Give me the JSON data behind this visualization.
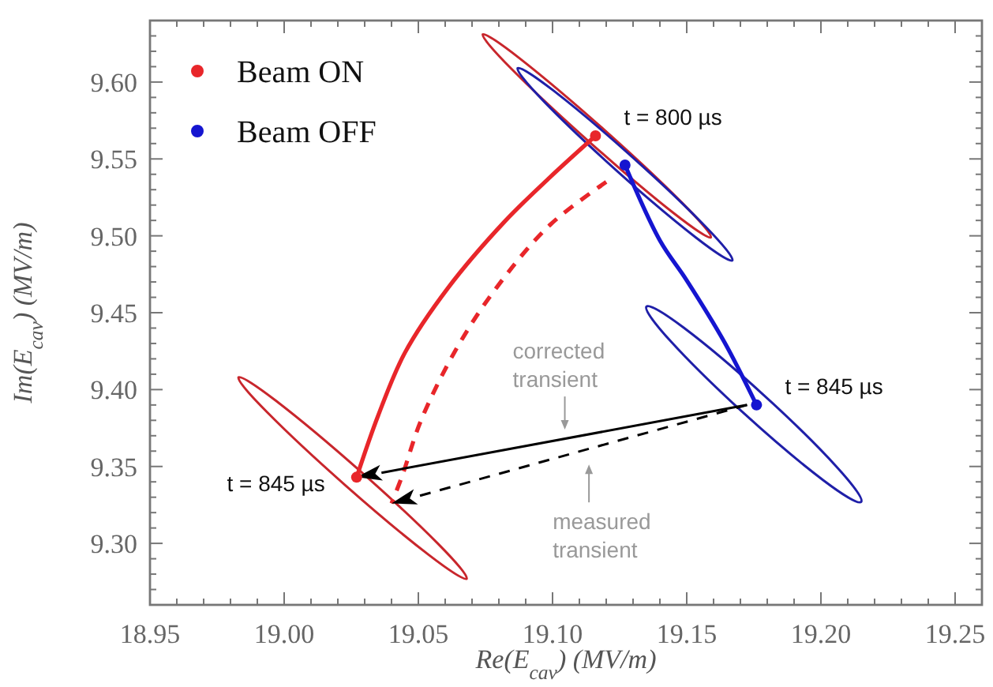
{
  "chart_data": {
    "type": "line",
    "xlabel": "Re(E$_{cav}$) (MV/m)",
    "ylabel": "Im(E$_{cav}$) (MV/m)",
    "xlim": [
      18.95,
      19.26
    ],
    "ylim": [
      9.26,
      9.64
    ],
    "xticks": [
      {
        "value": 18.95,
        "label": "18.95"
      },
      {
        "value": 18.96,
        "label": null
      },
      {
        "value": 18.97,
        "label": null
      },
      {
        "value": 18.98,
        "label": null
      },
      {
        "value": 18.99,
        "label": null
      },
      {
        "value": 19.0,
        "label": "19.00"
      },
      {
        "value": 19.01,
        "label": null
      },
      {
        "value": 19.02,
        "label": null
      },
      {
        "value": 19.03,
        "label": null
      },
      {
        "value": 19.04,
        "label": null
      },
      {
        "value": 19.05,
        "label": "19.05"
      },
      {
        "value": 19.06,
        "label": null
      },
      {
        "value": 19.07,
        "label": null
      },
      {
        "value": 19.08,
        "label": null
      },
      {
        "value": 19.09,
        "label": null
      },
      {
        "value": 19.1,
        "label": "19.10"
      },
      {
        "value": 19.11,
        "label": null
      },
      {
        "value": 19.12,
        "label": null
      },
      {
        "value": 19.13,
        "label": null
      },
      {
        "value": 19.14,
        "label": null
      },
      {
        "value": 19.15,
        "label": "19.15"
      },
      {
        "value": 19.16,
        "label": null
      },
      {
        "value": 19.17,
        "label": null
      },
      {
        "value": 19.18,
        "label": null
      },
      {
        "value": 19.19,
        "label": null
      },
      {
        "value": 19.2,
        "label": "19.20"
      },
      {
        "value": 19.21,
        "label": null
      },
      {
        "value": 19.22,
        "label": null
      },
      {
        "value": 19.23,
        "label": null
      },
      {
        "value": 19.24,
        "label": null
      },
      {
        "value": 19.25,
        "label": "19.25"
      }
    ],
    "yticks": [
      {
        "value": 9.27,
        "label": null
      },
      {
        "value": 9.28,
        "label": null
      },
      {
        "value": 9.29,
        "label": null
      },
      {
        "value": 9.3,
        "label": "9.30"
      },
      {
        "value": 9.31,
        "label": null
      },
      {
        "value": 9.32,
        "label": null
      },
      {
        "value": 9.33,
        "label": null
      },
      {
        "value": 9.34,
        "label": null
      },
      {
        "value": 9.35,
        "label": "9.35"
      },
      {
        "value": 9.36,
        "label": null
      },
      {
        "value": 9.37,
        "label": null
      },
      {
        "value": 9.38,
        "label": null
      },
      {
        "value": 9.39,
        "label": null
      },
      {
        "value": 9.4,
        "label": "9.40"
      },
      {
        "value": 9.41,
        "label": null
      },
      {
        "value": 9.42,
        "label": null
      },
      {
        "value": 9.43,
        "label": null
      },
      {
        "value": 9.44,
        "label": null
      },
      {
        "value": 9.45,
        "label": "9.45"
      },
      {
        "value": 9.46,
        "label": null
      },
      {
        "value": 9.47,
        "label": null
      },
      {
        "value": 9.48,
        "label": null
      },
      {
        "value": 9.49,
        "label": null
      },
      {
        "value": 9.5,
        "label": "9.50"
      },
      {
        "value": 9.51,
        "label": null
      },
      {
        "value": 9.52,
        "label": null
      },
      {
        "value": 9.53,
        "label": null
      },
      {
        "value": 9.54,
        "label": null
      },
      {
        "value": 9.55,
        "label": "9.55"
      },
      {
        "value": 9.56,
        "label": null
      },
      {
        "value": 9.57,
        "label": null
      },
      {
        "value": 9.58,
        "label": null
      },
      {
        "value": 9.59,
        "label": null
      },
      {
        "value": 9.6,
        "label": "9.60"
      },
      {
        "value": 9.61,
        "label": null
      },
      {
        "value": 9.62,
        "label": null
      },
      {
        "value": 9.63,
        "label": null
      }
    ],
    "grid": false,
    "legend": "top left",
    "series": [
      {
        "type": "line",
        "color": "#e8262a",
        "x": [
          19.116,
          19.099,
          19.082,
          19.061,
          19.045,
          19.035,
          19.027
        ],
        "values": [
          9.565,
          9.538,
          9.509,
          9.466,
          9.424,
          9.383,
          9.343
        ],
        "marker": "none",
        "line_style": "solid"
      },
      {
        "type": "line",
        "color": "#e8262a",
        "x": [
          19.12,
          19.099,
          19.079,
          19.064,
          19.051,
          19.044,
          19.04
        ],
        "values": [
          9.535,
          9.507,
          9.466,
          9.426,
          9.38,
          9.344,
          9.326
        ],
        "marker": "none",
        "line_style": "dashed"
      },
      {
        "type": "line",
        "color": "#1515d0",
        "x": [
          19.127,
          19.14,
          19.15,
          19.164,
          19.176
        ],
        "values": [
          9.546,
          9.497,
          9.471,
          9.431,
          9.39
        ],
        "marker": "none",
        "line_style": "solid"
      },
      {
        "type": "scatter",
        "name": "Beam ON",
        "color": "#e8262a",
        "x": [
          19.116,
          19.027
        ],
        "values": [
          9.565,
          9.343
        ],
        "marker": "circle"
      },
      {
        "type": "scatter",
        "name": "Beam OFF",
        "color": "#1515d0",
        "x": [
          19.127,
          19.176
        ],
        "values": [
          9.546,
          9.39
        ],
        "marker": "circle"
      }
    ],
    "annotations": [
      {
        "text": "t = 800 µs",
        "x": 19.116,
        "y": 9.565
      },
      {
        "text": "t = 845 µs",
        "x": 19.176,
        "y": 9.39
      },
      {
        "text": "t = 845 µs",
        "x": 19.027,
        "y": 9.343
      },
      "corrected transient",
      "measured transient"
    ]
  }
}
